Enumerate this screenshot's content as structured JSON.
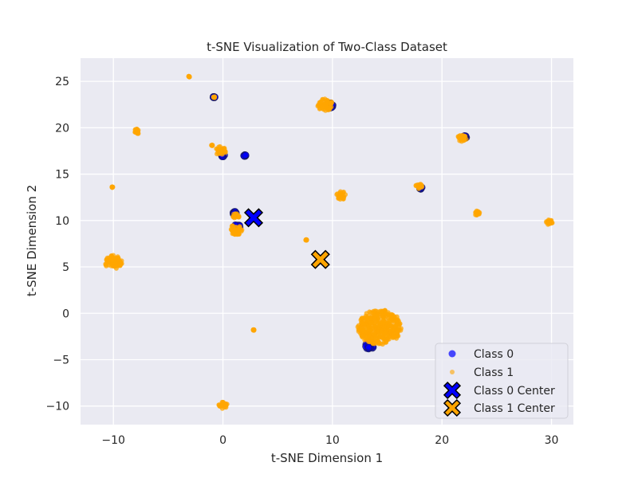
{
  "chart_data": {
    "type": "scatter",
    "title": "t-SNE Visualization of Two-Class Dataset",
    "xlabel": "t-SNE Dimension 1",
    "ylabel": "t-SNE Dimension 2",
    "xlim": [
      -13,
      32
    ],
    "ylim": [
      -12,
      27.5
    ],
    "xticks": [
      -10,
      0,
      10,
      20,
      30
    ],
    "yticks": [
      -10,
      -5,
      0,
      5,
      10,
      15,
      20,
      25
    ],
    "xtick_labels": [
      "−10",
      "0",
      "10",
      "20",
      "30"
    ],
    "ytick_labels": [
      "−10",
      "−5",
      "0",
      "5",
      "10",
      "15",
      "20",
      "25"
    ],
    "grid": true,
    "legend_position": "bottom-right",
    "colors": {
      "class0": "#0000ff",
      "class1": "#ffa500",
      "background": "#eaeaf2"
    },
    "series": [
      {
        "name": "Class 0",
        "clusters": [
          {
            "x": 13.4,
            "y": -3.5,
            "spread": 0.4
          },
          {
            "x": -0.8,
            "y": 23.3,
            "spread": 0.1
          },
          {
            "x": 2.0,
            "y": 17.0,
            "spread": 0.1
          },
          {
            "x": 1.1,
            "y": 10.8,
            "spread": 0.2
          },
          {
            "x": 1.3,
            "y": 9.3,
            "spread": 0.3
          },
          {
            "x": 18.1,
            "y": 13.5,
            "spread": 0.15
          },
          {
            "x": 22.1,
            "y": 19.0,
            "spread": 0.15
          },
          {
            "x": 9.8,
            "y": 22.4,
            "spread": 0.3
          },
          {
            "x": 0.0,
            "y": 17.0,
            "spread": 0.15
          }
        ]
      },
      {
        "name": "Class 1",
        "clusters": [
          {
            "x": 14.3,
            "y": -1.5,
            "spread": 2.0
          },
          {
            "x": -10.0,
            "y": 5.5,
            "spread": 0.8
          },
          {
            "x": 9.3,
            "y": 22.5,
            "spread": 0.7
          },
          {
            "x": -0.2,
            "y": 17.5,
            "spread": 0.5
          },
          {
            "x": 1.2,
            "y": 9.0,
            "spread": 0.6
          },
          {
            "x": -7.8,
            "y": 19.6,
            "spread": 0.3
          },
          {
            "x": 21.8,
            "y": 18.8,
            "spread": 0.45
          },
          {
            "x": 10.8,
            "y": 12.7,
            "spread": 0.45
          },
          {
            "x": 17.9,
            "y": 13.7,
            "spread": 0.3
          },
          {
            "x": 23.2,
            "y": 10.8,
            "spread": 0.25
          },
          {
            "x": 29.8,
            "y": 9.8,
            "spread": 0.3
          },
          {
            "x": 0.0,
            "y": -9.9,
            "spread": 0.4
          },
          {
            "x": 1.2,
            "y": 10.5,
            "spread": 0.3
          },
          {
            "x": -0.8,
            "y": 23.3,
            "spread": 0.07
          },
          {
            "x": -3.1,
            "y": 25.5,
            "spread": 0.05
          },
          {
            "x": -10.1,
            "y": 13.6,
            "spread": 0.05
          },
          {
            "x": -1.0,
            "y": 18.1,
            "spread": 0.05
          },
          {
            "x": 7.6,
            "y": 7.9,
            "spread": 0.05
          },
          {
            "x": 2.8,
            "y": -1.8,
            "spread": 0.05
          }
        ]
      }
    ],
    "centers": [
      {
        "name": "Class 0 Center",
        "x": 2.8,
        "y": 10.3
      },
      {
        "name": "Class 1 Center",
        "x": 8.9,
        "y": 5.8
      }
    ],
    "legend": [
      "Class 0",
      "Class 1",
      "Class 0 Center",
      "Class 1 Center"
    ]
  }
}
